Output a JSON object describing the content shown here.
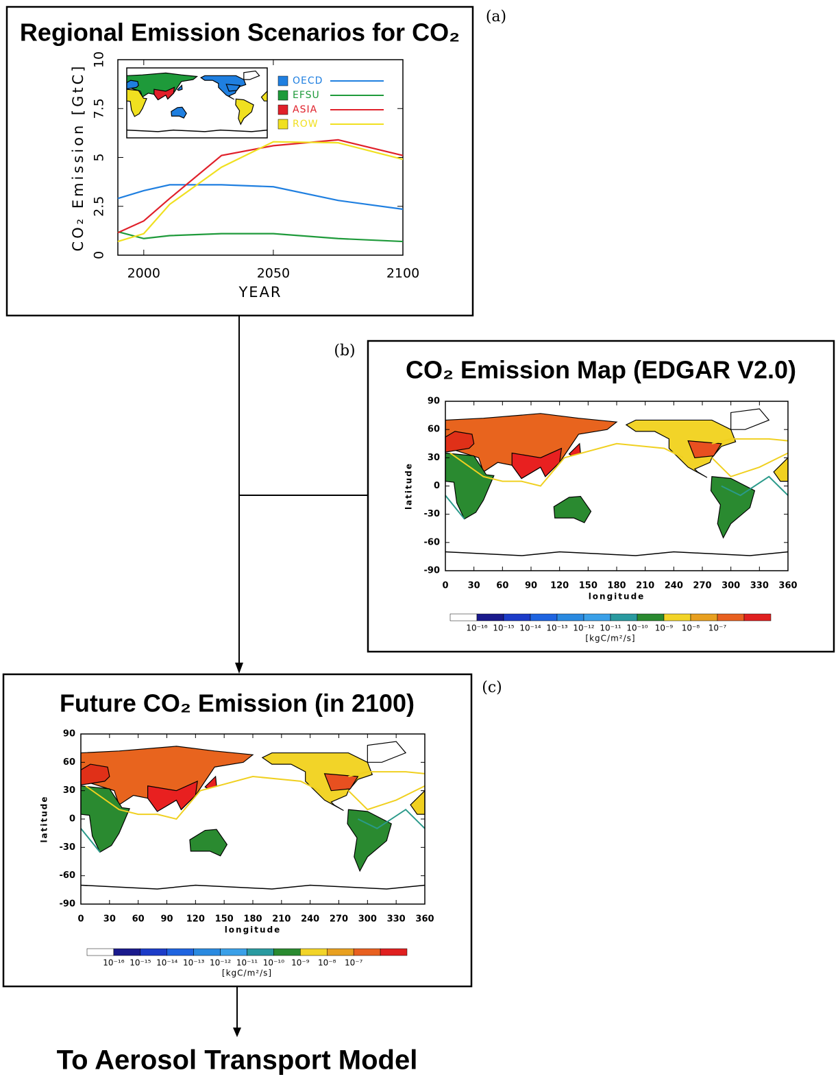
{
  "chart_data": {
    "type": "line",
    "label": "(a)",
    "title": "Regional Emission Scenarios for CO₂",
    "x_label": "YEAR",
    "y_label": "CO₂ Emission [GtC]",
    "x": [
      1990,
      2000,
      2010,
      2030,
      2050,
      2075,
      2100
    ],
    "series": [
      {
        "name": "OECD",
        "color": "#1f7fe0",
        "values": [
          2.9,
          3.3,
          3.6,
          3.6,
          3.5,
          2.8,
          2.35
        ]
      },
      {
        "name": "EFSU",
        "color": "#1e9a3a",
        "values": [
          1.2,
          0.85,
          1.0,
          1.1,
          1.1,
          0.85,
          0.7
        ]
      },
      {
        "name": "ASIA",
        "color": "#e0202a",
        "values": [
          1.15,
          1.75,
          2.9,
          5.1,
          5.6,
          5.9,
          5.1
        ]
      },
      {
        "name": "ROW",
        "color": "#f0e020",
        "values": [
          0.7,
          1.1,
          2.6,
          4.5,
          5.8,
          5.75,
          4.9
        ]
      }
    ],
    "xlim": [
      1990,
      2100
    ],
    "xticks": [
      2000,
      2050,
      2100
    ],
    "ylim": [
      0,
      10
    ],
    "yticks": [
      0,
      2.5,
      5,
      7.5,
      10
    ]
  },
  "panels": [
    {
      "label": "(b)",
      "title": "CO₂ Emission Map (EDGAR V2.0)",
      "x_label": "longitude",
      "y_label": "latitude",
      "xlim": [
        0,
        360
      ],
      "xticks": [
        0,
        30,
        60,
        90,
        120,
        150,
        180,
        210,
        240,
        270,
        300,
        330,
        360
      ],
      "ylim": [
        -90,
        90
      ],
      "yticks": [
        90,
        60,
        30,
        0,
        -30,
        -60,
        -90
      ],
      "colorbar_labels": [
        "10⁻¹⁶",
        "10⁻¹⁵",
        "10⁻¹⁴",
        "10⁻¹³",
        "10⁻¹²",
        "10⁻¹¹",
        "10⁻¹⁰",
        "10⁻⁹",
        "10⁻⁸",
        "10⁻⁷"
      ],
      "colorbar_unit": "[kgC/m²/s]"
    },
    {
      "label": "(c)",
      "title": "Future CO₂ Emission (in 2100)",
      "x_label": "longitude",
      "y_label": "latitude",
      "xlim": [
        0,
        360
      ],
      "xticks": [
        0,
        30,
        60,
        90,
        120,
        150,
        180,
        210,
        240,
        270,
        300,
        330,
        360
      ],
      "ylim": [
        -90,
        90
      ],
      "yticks": [
        90,
        60,
        30,
        0,
        -30,
        -60,
        -90
      ],
      "colorbar_labels": [
        "10⁻¹⁶",
        "10⁻¹⁵",
        "10⁻¹⁴",
        "10⁻¹³",
        "10⁻¹²",
        "10⁻¹¹",
        "10⁻¹⁰",
        "10⁻⁹",
        "10⁻⁸",
        "10⁻⁷"
      ],
      "colorbar_unit": "[kgC/m²/s]"
    }
  ],
  "footer": "To Aerosol Transport Model"
}
